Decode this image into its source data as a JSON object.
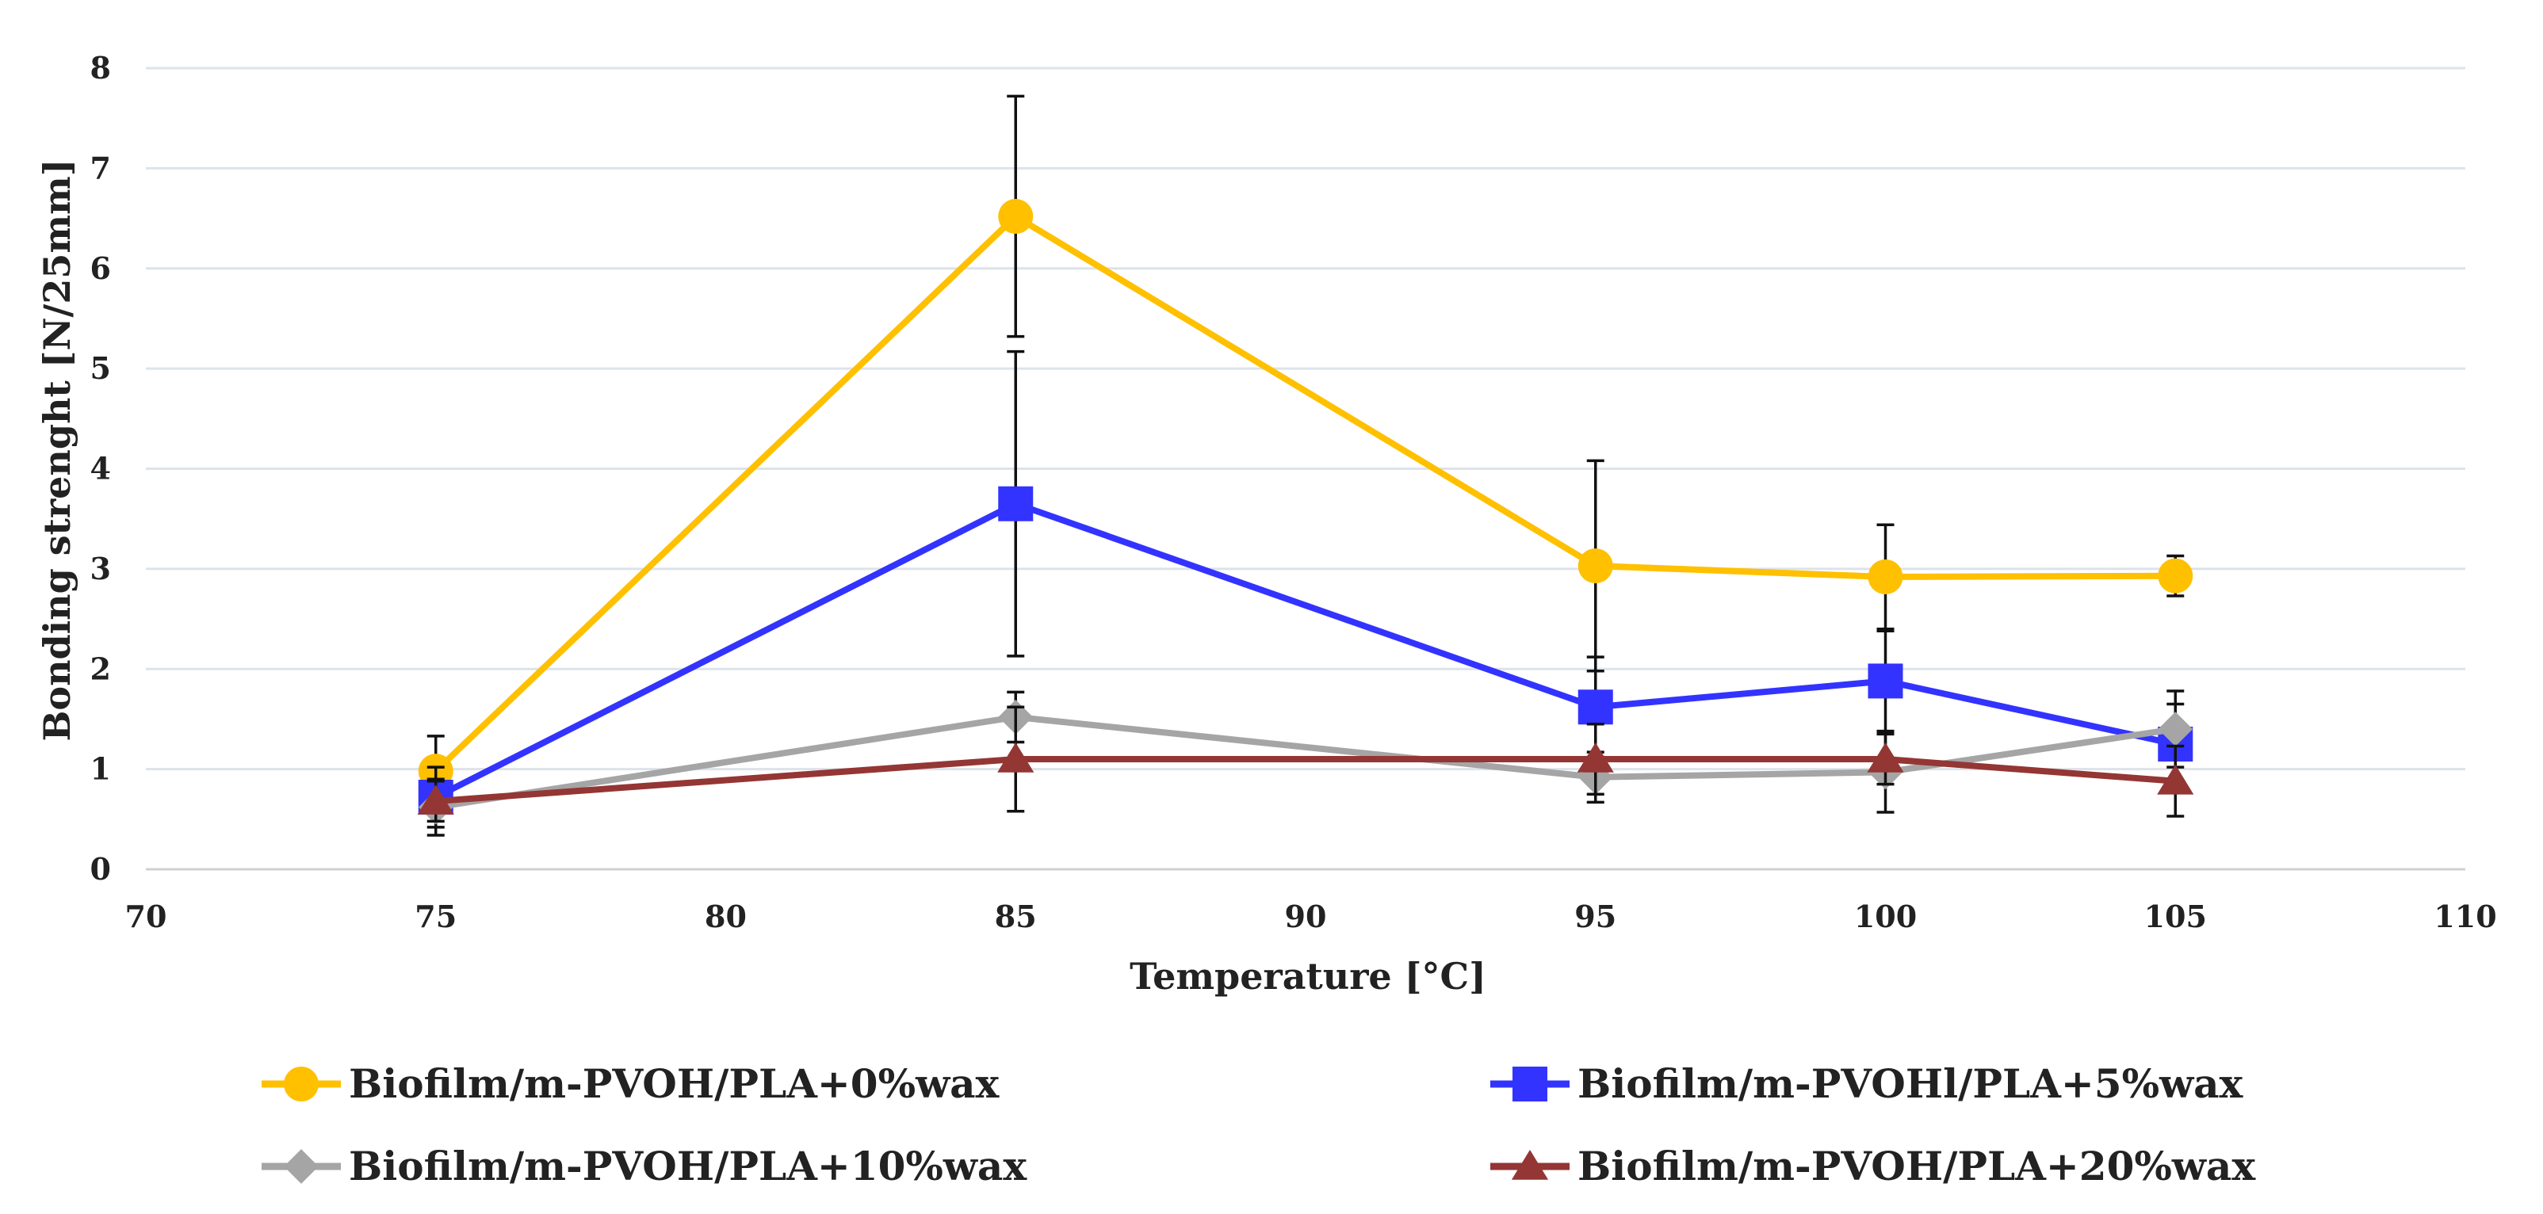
{
  "chart_data": {
    "type": "line",
    "title": "",
    "xlabel": "Temperature [°C]",
    "ylabel": "Bonding strenght [N/25mm]",
    "xlim": [
      70,
      110
    ],
    "ylim": [
      0,
      8
    ],
    "xticks": [
      70,
      75,
      80,
      85,
      90,
      95,
      100,
      105,
      110
    ],
    "yticks": [
      0,
      1,
      2,
      3,
      4,
      5,
      6,
      7,
      8
    ],
    "grid": "horizontal",
    "legend_position": "bottom",
    "x": [
      75,
      85,
      95,
      100,
      105
    ],
    "series": [
      {
        "name": "Biofilm/m-PVOH/PLA+0%wax",
        "color": "#FFC000",
        "marker": "circle",
        "values": [
          0.98,
          6.52,
          3.03,
          2.92,
          2.93
        ],
        "errors": [
          0.35,
          1.2,
          1.05,
          0.52,
          0.2
        ]
      },
      {
        "name": "Biofilm/m-PVOHl/PLA+5%wax",
        "color": "#3333FF",
        "marker": "square",
        "values": [
          0.72,
          3.65,
          1.62,
          1.88,
          1.25
        ],
        "errors": [
          0.3,
          1.52,
          0.5,
          0.5,
          0.4
        ]
      },
      {
        "name": "Biofilm/m-PVOH/PLA+10%wax",
        "color": "#A5A5A5",
        "marker": "diamond",
        "values": [
          0.62,
          1.52,
          0.92,
          0.97,
          1.4
        ],
        "errors": [
          0.28,
          0.25,
          0.25,
          0.4,
          0.38
        ]
      },
      {
        "name": "Biofilm/m-PVOH/PLA+20%wax",
        "color": "#943634",
        "marker": "triangle",
        "values": [
          0.68,
          1.1,
          1.1,
          1.1,
          0.88
        ],
        "errors": [
          0.2,
          0.52,
          0.35,
          0.25,
          0.35
        ]
      }
    ]
  }
}
